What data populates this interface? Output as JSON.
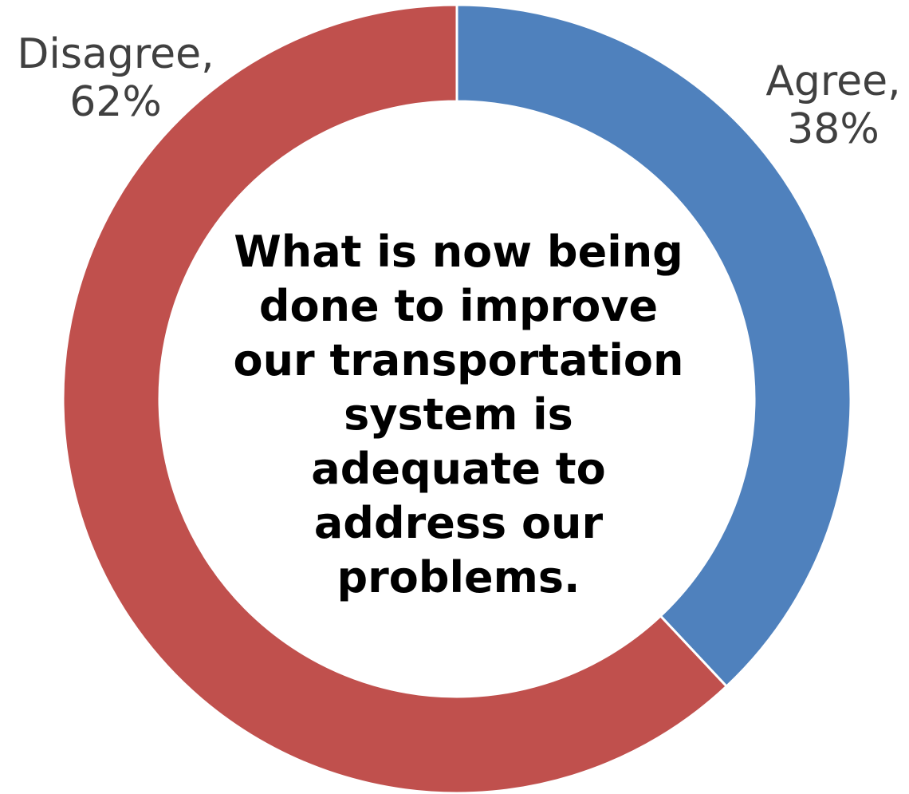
{
  "chart_data": {
    "type": "pie",
    "variant": "donut",
    "title": "What is now being done to improve our transportation system is adequate to address our problems.",
    "slices": [
      {
        "name": "Agree",
        "value": 38,
        "value_label": "38%",
        "color": "#4F81BD"
      },
      {
        "name": "Disagree",
        "value": 62,
        "value_label": "62%",
        "color": "#C0504D"
      }
    ],
    "start": "top",
    "direction": "clockwise",
    "legend": "none",
    "data_labels": "outside, category name and percentage"
  }
}
